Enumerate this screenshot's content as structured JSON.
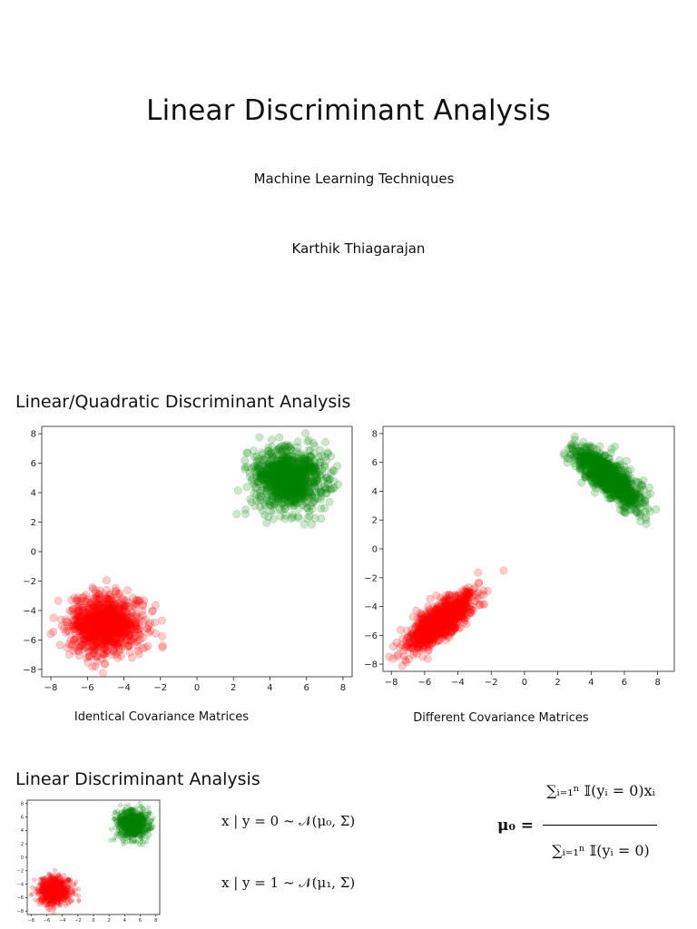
{
  "slide1": {
    "title": "Linear Discriminant Analysis",
    "subtitle": "Machine Learning Techniques",
    "author": "Karthik Thiagarajan"
  },
  "slide2": {
    "heading": "Linear/Quadratic Discriminant Analysis",
    "left_caption": "Identical Covariance Matrices",
    "right_caption": "Different Covariance Matrices"
  },
  "slide3": {
    "heading": "Linear Discriminant Analysis",
    "eq_class0": "x | y = 0 ~ 𝒩(μ₀, Σ)",
    "eq_class1": "x | y = 1 ~ 𝒩(μ₁, Σ)",
    "mu_lhs": "μ₀ =",
    "mu_num": "∑ᵢ₌₁ⁿ 𝕀(yᵢ = 0)xᵢ",
    "mu_den": "∑ᵢ₌₁ⁿ 𝕀(yᵢ = 0)"
  },
  "chart_data": [
    {
      "type": "scatter",
      "title": "",
      "caption": "Identical Covariance Matrices",
      "xlabel": "",
      "ylabel": "",
      "xlim": [
        -8.5,
        8.5
      ],
      "ylim": [
        -8.5,
        8.5
      ],
      "xticks": [
        -8,
        -6,
        -4,
        -2,
        0,
        2,
        4,
        6,
        8
      ],
      "yticks": [
        -8,
        -6,
        -4,
        -2,
        0,
        2,
        4,
        6,
        8
      ],
      "series": [
        {
          "color": "#ff0000",
          "mean": [
            -5,
            -5
          ],
          "cov": [
            [
              1,
              0
            ],
            [
              0,
              1
            ]
          ],
          "n": 1000
        },
        {
          "color": "#008000",
          "mean": [
            5,
            5
          ],
          "cov": [
            [
              1,
              0
            ],
            [
              0,
              1
            ]
          ],
          "n": 1000
        }
      ]
    },
    {
      "type": "scatter",
      "title": "",
      "caption": "Different Covariance Matrices",
      "xlabel": "",
      "ylabel": "",
      "xlim": [
        -8.5,
        9
      ],
      "ylim": [
        -8.5,
        8.5
      ],
      "xticks": [
        -8,
        -6,
        -4,
        -2,
        0,
        2,
        4,
        6,
        8
      ],
      "yticks": [
        -8,
        -6,
        -4,
        -2,
        0,
        2,
        4,
        6,
        8
      ],
      "series": [
        {
          "color": "#ff0000",
          "mean": [
            -5,
            -5
          ],
          "cov": [
            [
              1,
              0.8
            ],
            [
              0.8,
              1
            ]
          ],
          "n": 1000
        },
        {
          "color": "#008000",
          "mean": [
            5,
            5
          ],
          "cov": [
            [
              1,
              -0.8
            ],
            [
              -0.8,
              1
            ]
          ],
          "n": 1000
        }
      ]
    },
    {
      "type": "scatter",
      "title": "",
      "xlabel": "",
      "ylabel": "",
      "xlim": [
        -8.5,
        8.5
      ],
      "ylim": [
        -8.5,
        8.5
      ],
      "xticks": [
        -8,
        -6,
        -4,
        -2,
        0,
        2,
        4,
        6,
        8
      ],
      "yticks": [
        -8,
        -6,
        -4,
        -2,
        0,
        2,
        4,
        6,
        8
      ],
      "series": [
        {
          "color": "#ff0000",
          "mean": [
            -5,
            -5
          ],
          "cov": [
            [
              1,
              0
            ],
            [
              0,
              1
            ]
          ],
          "n": 1000
        },
        {
          "color": "#008000",
          "mean": [
            5,
            5
          ],
          "cov": [
            [
              1,
              0
            ],
            [
              0,
              1
            ]
          ],
          "n": 1000
        }
      ]
    }
  ]
}
